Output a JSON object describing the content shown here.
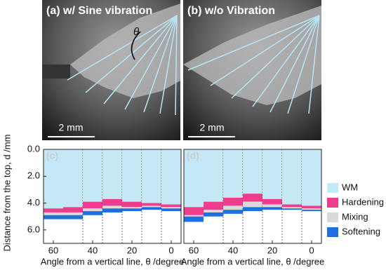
{
  "micrographs": [
    {
      "label": "(a) w/ Sine vibration",
      "angle_label": "θ",
      "scale_bar": "2 mm"
    },
    {
      "label": "(b) w/o Vibration",
      "scale_bar": "2 mm"
    }
  ],
  "chart_data": [
    {
      "type": "bar",
      "stacked": true,
      "panel_label": "(c)",
      "y_label": "Distance from the top, d /mm",
      "x_label": "Angle from a vertical line, θ /degree",
      "x": [
        60,
        50,
        40,
        30,
        20,
        10,
        0
      ],
      "xlim": [
        65,
        -5
      ],
      "xticks": [
        60,
        40,
        20,
        0
      ],
      "ylim": [
        0,
        7
      ],
      "y_inverted": true,
      "yticks": [
        {
          "value": 0,
          "label": "0.0"
        },
        {
          "value": 2,
          "label": "2.0"
        },
        {
          "value": 4,
          "label": "4.0"
        },
        {
          "value": 6,
          "label": "6.0"
        }
      ],
      "series": [
        {
          "name": "WM",
          "color": "#c5e8f7",
          "values": [
            4.4,
            4.3,
            3.9,
            3.7,
            3.9,
            4.0,
            4.1
          ]
        },
        {
          "name": "Hardening",
          "color": "#ee3d8c",
          "values": [
            0.3,
            0.4,
            0.5,
            0.5,
            0.4,
            0.2,
            0.2
          ]
        },
        {
          "name": "Mixing",
          "color": "#d9d9d9",
          "values": [
            0.2,
            0.2,
            0.2,
            0.2,
            0.1,
            0.1,
            0.1
          ]
        },
        {
          "name": "Softening",
          "color": "#1f6fe0",
          "values": [
            0.3,
            0.3,
            0.3,
            0.3,
            0.2,
            0.2,
            0.2
          ]
        }
      ]
    },
    {
      "type": "bar",
      "stacked": true,
      "panel_label": "(d)",
      "x_label": "Angle from a vertical line, θ /degree",
      "x": [
        60,
        50,
        40,
        30,
        20,
        10,
        0
      ],
      "xlim": [
        65,
        -5
      ],
      "xticks": [
        60,
        40,
        20,
        0
      ],
      "ylim": [
        0,
        7
      ],
      "y_inverted": true,
      "series": [
        {
          "name": "WM",
          "color": "#c5e8f7",
          "values": [
            4.3,
            3.9,
            3.6,
            3.3,
            3.7,
            4.1,
            4.2
          ]
        },
        {
          "name": "Hardening",
          "color": "#ee3d8c",
          "values": [
            0.6,
            0.6,
            0.6,
            0.6,
            0.4,
            0.2,
            0.2
          ]
        },
        {
          "name": "Mixing",
          "color": "#d9d9d9",
          "values": [
            0.1,
            0.2,
            0.3,
            0.4,
            0.2,
            0.1,
            0.1
          ]
        },
        {
          "name": "Softening",
          "color": "#1f6fe0",
          "values": [
            0.4,
            0.3,
            0.3,
            0.3,
            0.2,
            0.1,
            0.1
          ]
        }
      ]
    }
  ]
}
